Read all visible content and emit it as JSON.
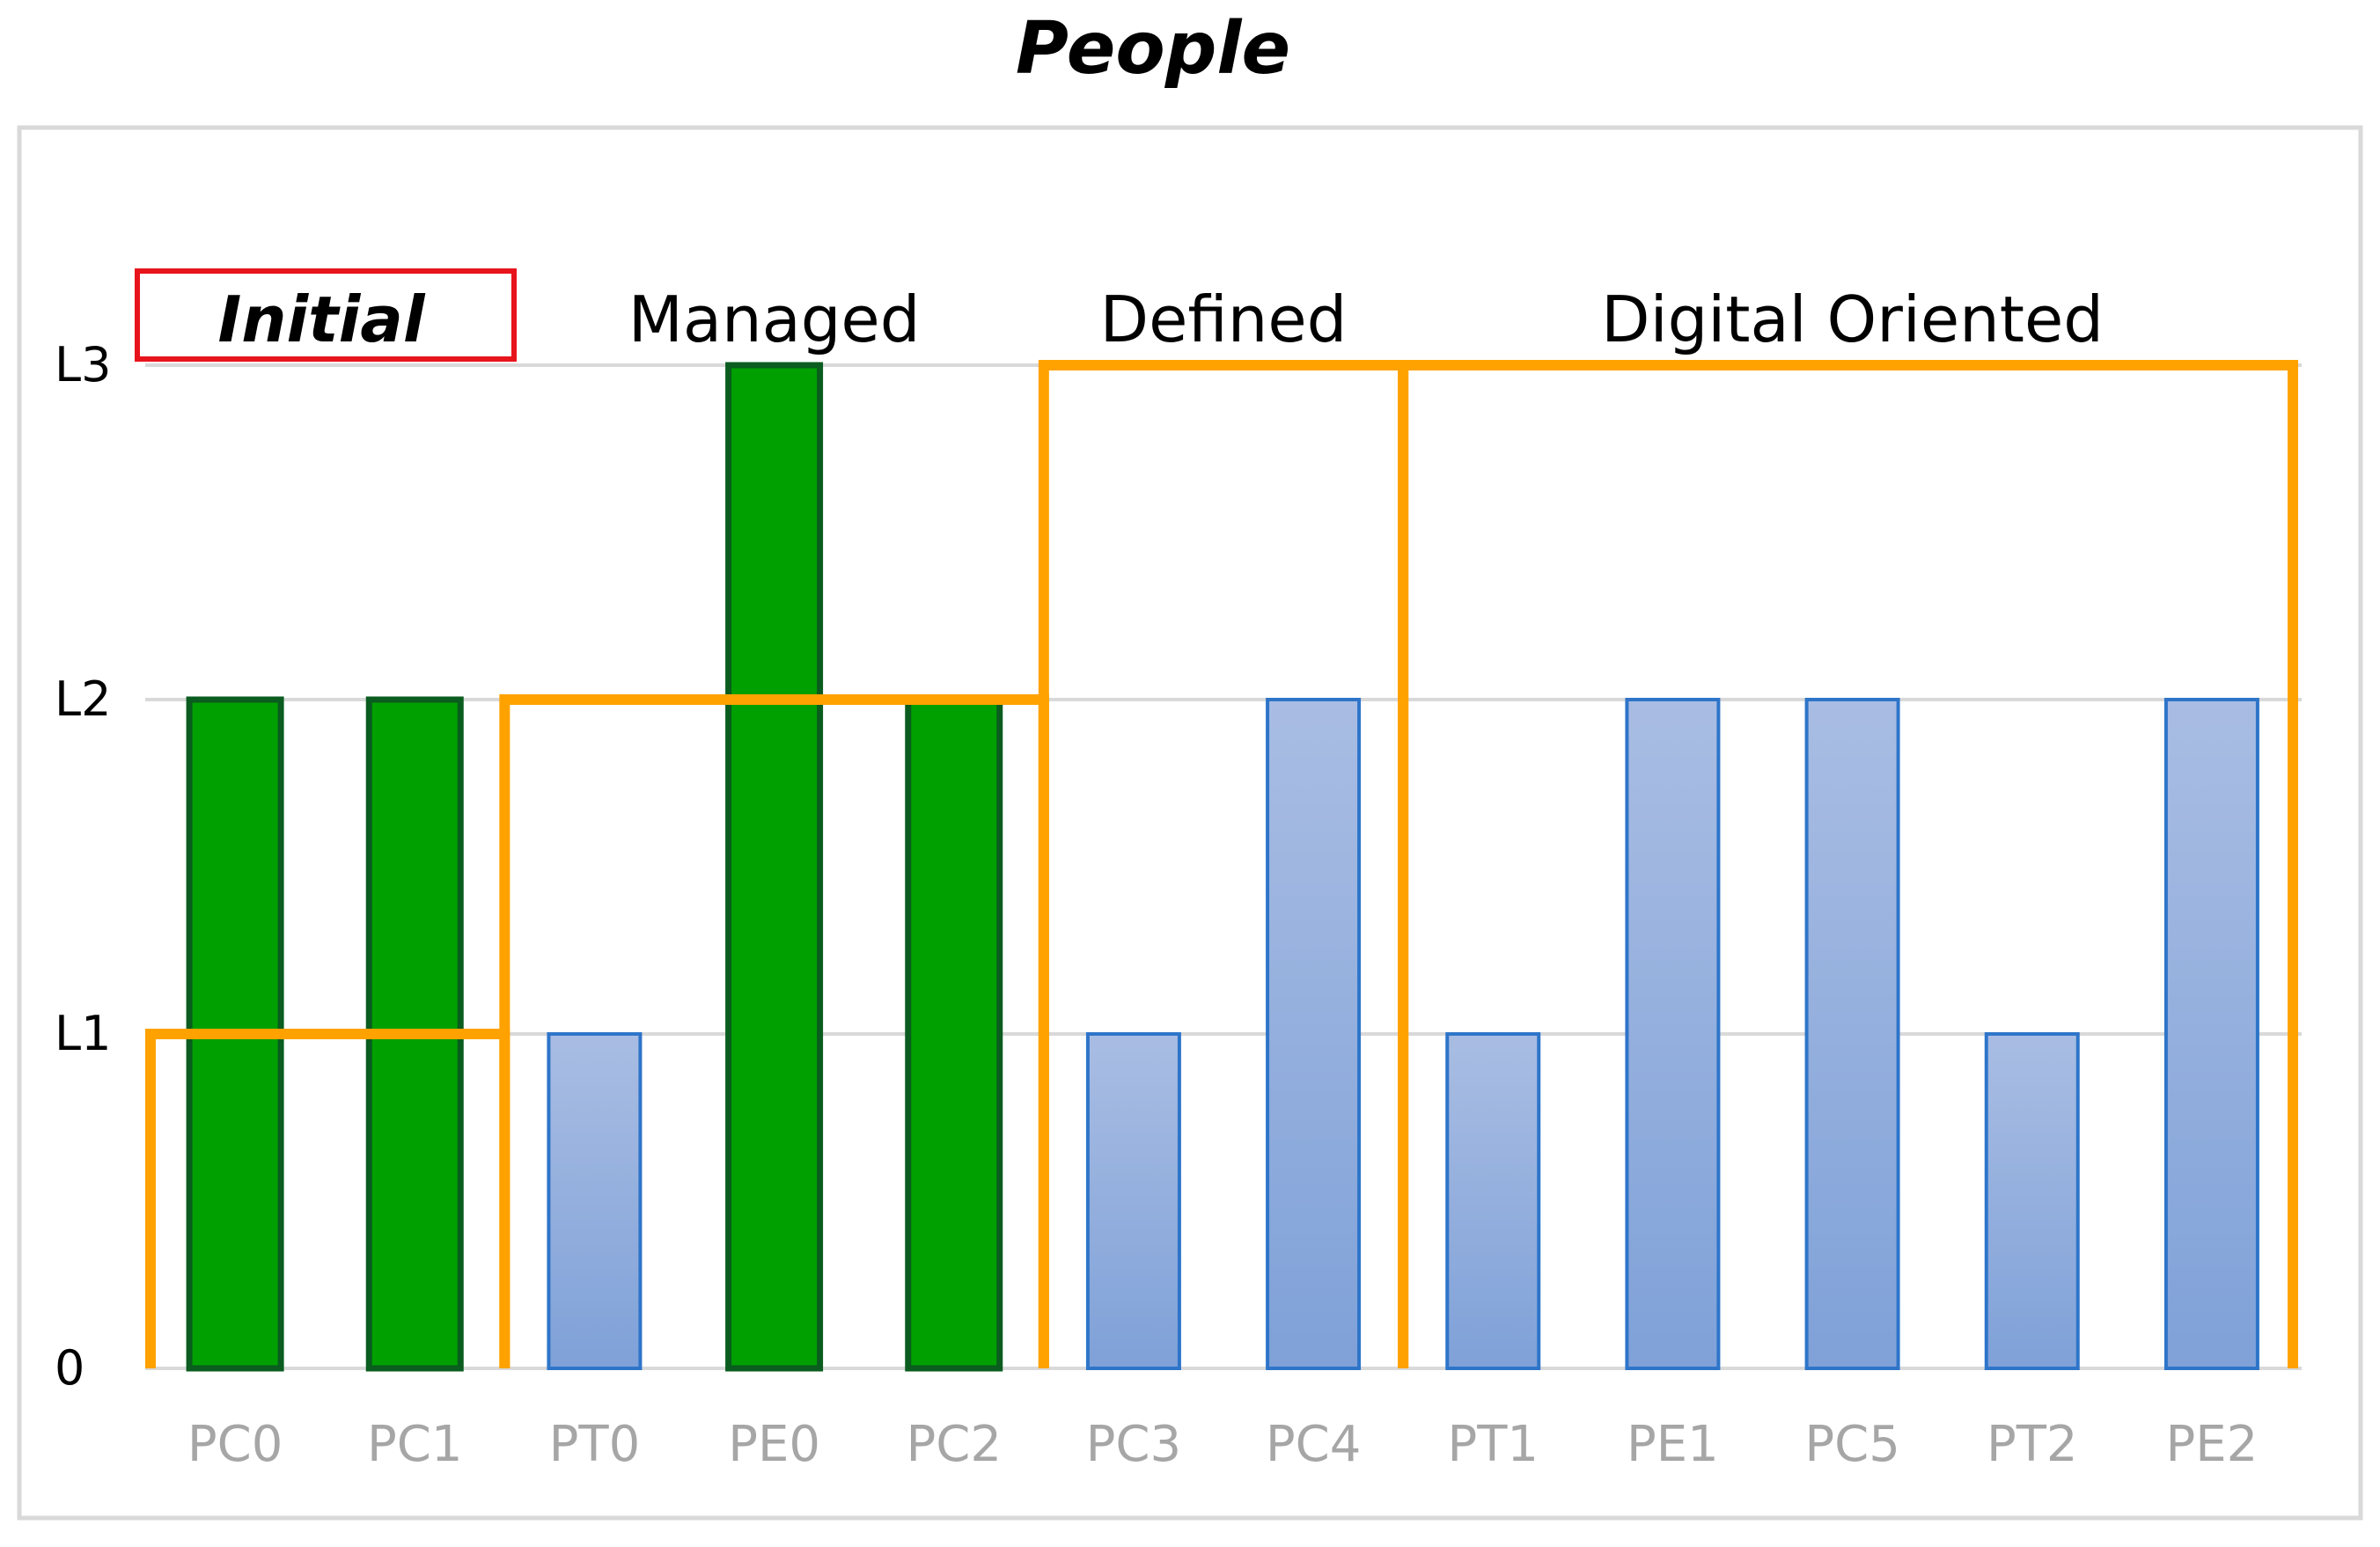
{
  "chart_data": {
    "type": "bar",
    "title": "People",
    "categories": [
      "PC0",
      "PC1",
      "PT0",
      "PE0",
      "PC2",
      "PC3",
      "PC4",
      "PT1",
      "PE1",
      "PC5",
      "PT2",
      "PE2"
    ],
    "values": [
      2,
      2,
      1,
      3,
      2,
      1,
      2,
      1,
      2,
      2,
      1,
      2
    ],
    "highlighted": [
      true,
      true,
      false,
      true,
      true,
      false,
      false,
      false,
      false,
      false,
      false,
      false
    ],
    "ylim": [
      0,
      3
    ],
    "yticks": [
      {
        "value": 0,
        "label": "0"
      },
      {
        "value": 1,
        "label": "L1"
      },
      {
        "value": 2,
        "label": "L2"
      },
      {
        "value": 3,
        "label": "L3"
      }
    ],
    "grid": true,
    "zones": [
      {
        "label": "Initial",
        "from": 0,
        "to": 1,
        "level": 1,
        "emphasized": true
      },
      {
        "label": "Managed",
        "from": 2,
        "to": 4,
        "level": 2,
        "emphasized": false
      },
      {
        "label": "Defined",
        "from": 5,
        "to": 6,
        "level": 3,
        "emphasized": false
      },
      {
        "label": "Digital Oriented",
        "from": 7,
        "to": 11,
        "level": 3,
        "emphasized": false
      }
    ],
    "colors": {
      "highlight_fill": "#00a000",
      "highlight_stroke": "#0a5c1f",
      "bar_fill_top": "#a9bde3",
      "bar_fill_bottom": "#7fa1d8",
      "bar_stroke": "#2e75c9",
      "zone_outline": "#ffa200",
      "initial_box": "#e8141b"
    }
  }
}
